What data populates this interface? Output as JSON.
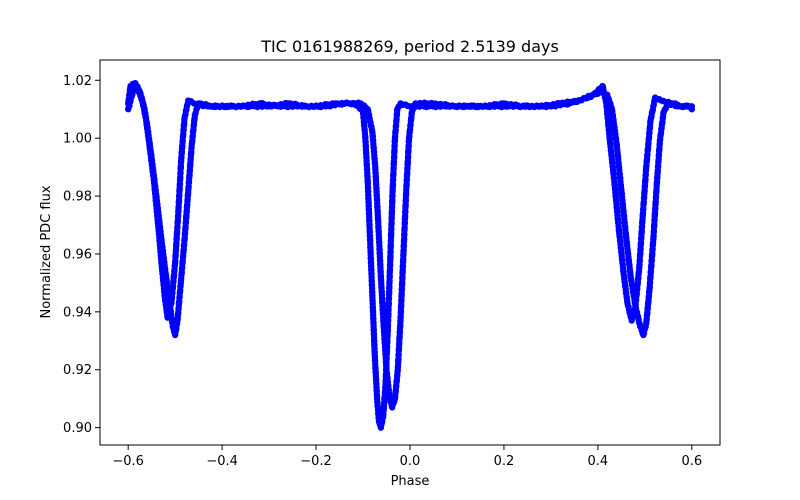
{
  "chart_data": {
    "type": "scatter",
    "title": "TIC 0161988269, period 2.5139 days",
    "xlabel": "Phase",
    "ylabel": "Normalized PDC flux",
    "xlim": [
      -0.66,
      0.66
    ],
    "ylim": [
      0.894,
      1.027
    ],
    "x_ticks": [
      -0.6,
      -0.4,
      -0.2,
      0.0,
      0.2,
      0.4,
      0.6
    ],
    "x_tick_labels": [
      "−0.6",
      "−0.4",
      "−0.2",
      "0.0",
      "0.2",
      "0.4",
      "0.6"
    ],
    "y_ticks": [
      0.9,
      0.92,
      0.94,
      0.96,
      0.98,
      1.0,
      1.02
    ],
    "y_tick_labels": [
      "0.90",
      "0.92",
      "0.94",
      "0.96",
      "0.98",
      "1.00",
      "1.02"
    ],
    "grid": false,
    "marker_color": "#0000ff",
    "series": [
      {
        "values": [
          [
            -0.6,
            1.012
          ],
          [
            -0.595,
            1.018
          ],
          [
            -0.585,
            1.019
          ],
          [
            -0.575,
            1.016
          ],
          [
            -0.565,
            1.01
          ],
          [
            -0.555,
            0.998
          ],
          [
            -0.545,
            0.985
          ],
          [
            -0.535,
            0.968
          ],
          [
            -0.528,
            0.955
          ],
          [
            -0.522,
            0.945
          ],
          [
            -0.516,
            0.938
          ],
          [
            -0.508,
            0.943
          ],
          [
            -0.5,
            0.957
          ],
          [
            -0.493,
            0.975
          ],
          [
            -0.487,
            0.993
          ],
          [
            -0.48,
            1.007
          ],
          [
            -0.472,
            1.013
          ],
          [
            -0.46,
            1.012
          ],
          [
            -0.43,
            1.011
          ],
          [
            -0.4,
            1.011
          ],
          [
            -0.36,
            1.011
          ],
          [
            -0.32,
            1.012
          ],
          [
            -0.28,
            1.011
          ],
          [
            -0.24,
            1.011
          ],
          [
            -0.2,
            1.011
          ],
          [
            -0.16,
            1.012
          ],
          [
            -0.125,
            1.012
          ],
          [
            -0.11,
            1.011
          ],
          [
            -0.1,
            1.009
          ],
          [
            -0.095,
            1.0
          ],
          [
            -0.09,
            0.985
          ],
          [
            -0.085,
            0.965
          ],
          [
            -0.08,
            0.945
          ],
          [
            -0.075,
            0.925
          ],
          [
            -0.07,
            0.91
          ],
          [
            -0.066,
            0.902
          ],
          [
            -0.062,
            0.9
          ],
          [
            -0.057,
            0.904
          ],
          [
            -0.052,
            0.915
          ],
          [
            -0.047,
            0.935
          ],
          [
            -0.042,
            0.958
          ],
          [
            -0.037,
            0.982
          ],
          [
            -0.032,
            1.0
          ],
          [
            -0.027,
            1.01
          ],
          [
            -0.02,
            1.012
          ],
          [
            0.0,
            1.011
          ],
          [
            0.04,
            1.011
          ],
          [
            0.08,
            1.011
          ],
          [
            0.12,
            1.011
          ],
          [
            0.16,
            1.011
          ],
          [
            0.2,
            1.012
          ],
          [
            0.24,
            1.011
          ],
          [
            0.28,
            1.011
          ],
          [
            0.32,
            1.012
          ],
          [
            0.36,
            1.013
          ],
          [
            0.39,
            1.015
          ],
          [
            0.41,
            1.018
          ],
          [
            0.418,
            1.012
          ],
          [
            0.425,
            1.0
          ],
          [
            0.435,
            0.985
          ],
          [
            0.445,
            0.968
          ],
          [
            0.455,
            0.953
          ],
          [
            0.463,
            0.943
          ],
          [
            0.472,
            0.937
          ],
          [
            0.48,
            0.942
          ],
          [
            0.488,
            0.955
          ],
          [
            0.495,
            0.972
          ],
          [
            0.503,
            0.99
          ],
          [
            0.512,
            1.006
          ],
          [
            0.522,
            1.014
          ],
          [
            0.535,
            1.013
          ],
          [
            0.56,
            1.012
          ],
          [
            0.58,
            1.011
          ],
          [
            0.6,
            1.011
          ]
        ]
      },
      {
        "values": [
          [
            -0.6,
            1.01
          ],
          [
            -0.59,
            1.016
          ],
          [
            -0.58,
            1.017
          ],
          [
            -0.57,
            1.013
          ],
          [
            -0.56,
            1.005
          ],
          [
            -0.55,
            0.993
          ],
          [
            -0.54,
            0.98
          ],
          [
            -0.53,
            0.966
          ],
          [
            -0.52,
            0.953
          ],
          [
            -0.512,
            0.943
          ],
          [
            -0.505,
            0.935
          ],
          [
            -0.5,
            0.932
          ],
          [
            -0.495,
            0.937
          ],
          [
            -0.488,
            0.95
          ],
          [
            -0.48,
            0.965
          ],
          [
            -0.472,
            0.982
          ],
          [
            -0.465,
            0.997
          ],
          [
            -0.458,
            1.008
          ],
          [
            -0.45,
            1.012
          ],
          [
            -0.42,
            1.011
          ],
          [
            -0.38,
            1.011
          ],
          [
            -0.34,
            1.011
          ],
          [
            -0.3,
            1.011
          ],
          [
            -0.26,
            1.012
          ],
          [
            -0.22,
            1.011
          ],
          [
            -0.18,
            1.011
          ],
          [
            -0.14,
            1.012
          ],
          [
            -0.105,
            1.012
          ],
          [
            -0.09,
            1.01
          ],
          [
            -0.08,
            1.002
          ],
          [
            -0.074,
            0.99
          ],
          [
            -0.068,
            0.972
          ],
          [
            -0.062,
            0.952
          ],
          [
            -0.056,
            0.935
          ],
          [
            -0.05,
            0.92
          ],
          [
            -0.044,
            0.911
          ],
          [
            -0.038,
            0.907
          ],
          [
            -0.032,
            0.91
          ],
          [
            -0.026,
            0.92
          ],
          [
            -0.02,
            0.938
          ],
          [
            -0.014,
            0.96
          ],
          [
            -0.008,
            0.982
          ],
          [
            -0.002,
            1.0
          ],
          [
            0.004,
            1.009
          ],
          [
            0.012,
            1.012
          ],
          [
            0.05,
            1.012
          ],
          [
            0.1,
            1.011
          ],
          [
            0.15,
            1.011
          ],
          [
            0.21,
            1.011
          ],
          [
            0.26,
            1.011
          ],
          [
            0.3,
            1.011
          ],
          [
            0.34,
            1.012
          ],
          [
            0.38,
            1.014
          ],
          [
            0.405,
            1.016
          ],
          [
            0.42,
            1.015
          ],
          [
            0.43,
            1.01
          ],
          [
            0.44,
            0.998
          ],
          [
            0.45,
            0.982
          ],
          [
            0.46,
            0.966
          ],
          [
            0.47,
            0.952
          ],
          [
            0.48,
            0.942
          ],
          [
            0.49,
            0.935
          ],
          [
            0.497,
            0.932
          ],
          [
            0.503,
            0.936
          ],
          [
            0.51,
            0.948
          ],
          [
            0.518,
            0.965
          ],
          [
            0.525,
            0.983
          ],
          [
            0.532,
            0.999
          ],
          [
            0.54,
            1.009
          ],
          [
            0.55,
            1.012
          ],
          [
            0.57,
            1.011
          ],
          [
            0.59,
            1.011
          ],
          [
            0.6,
            1.01
          ]
        ]
      }
    ]
  }
}
